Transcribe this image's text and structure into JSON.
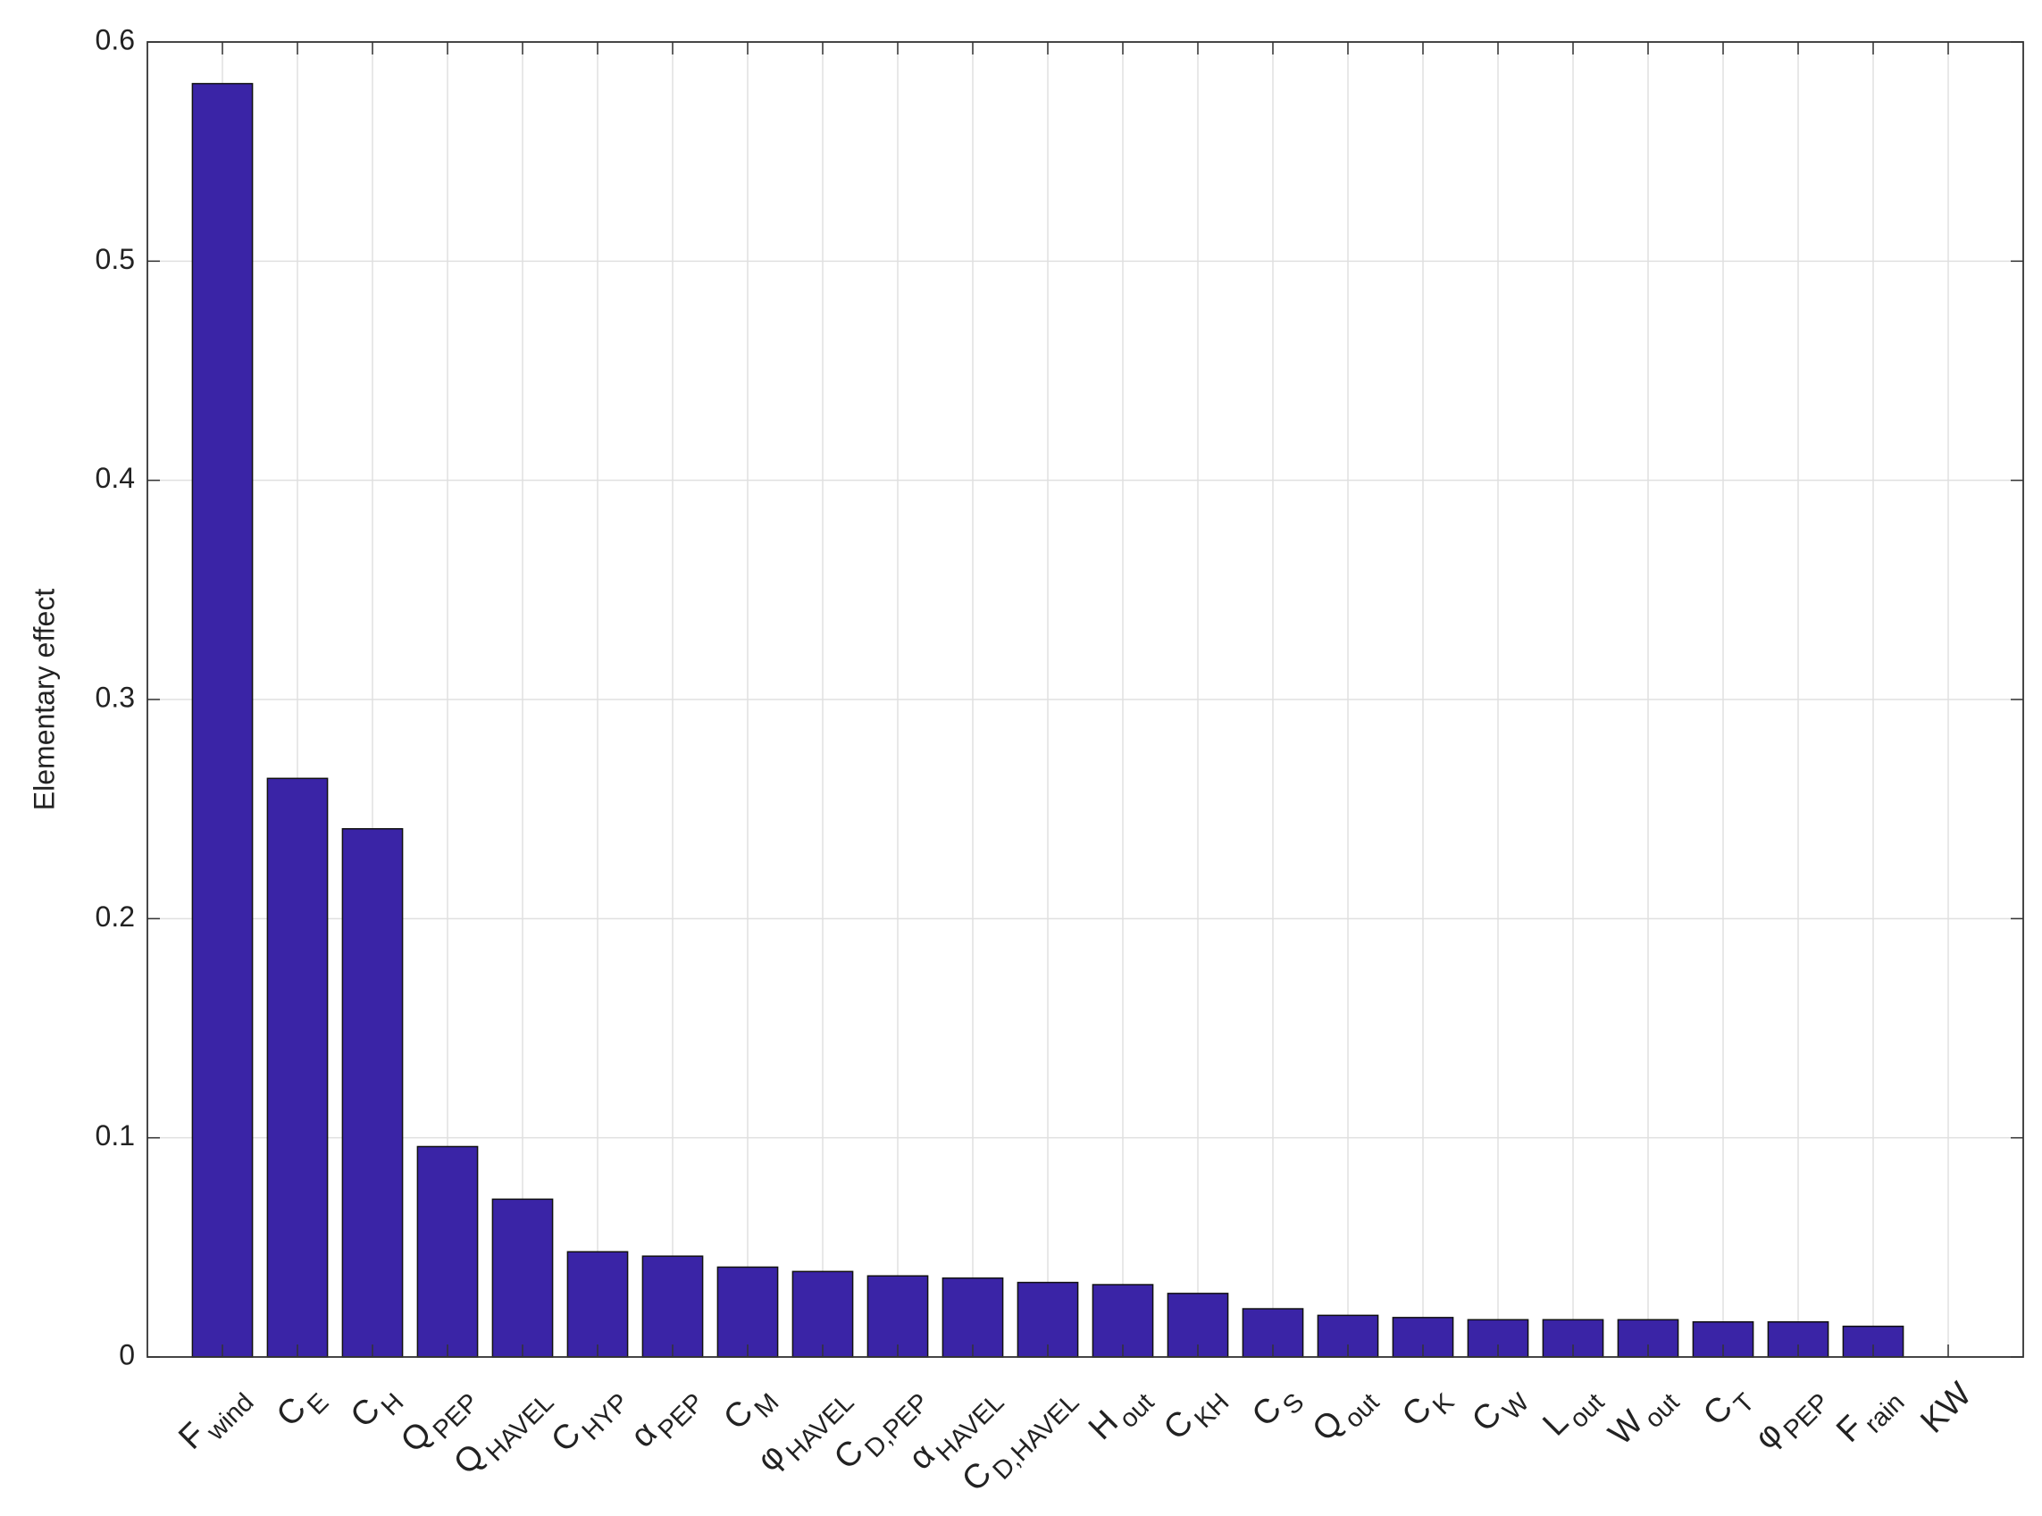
{
  "chart_data": {
    "type": "bar",
    "y_label": "Elementary effect",
    "categories": [
      "F",
      "C",
      "C",
      "Q",
      "Q",
      "C",
      "α",
      "C",
      "φ",
      "C",
      "α",
      "C",
      "H",
      "C",
      "C",
      "Q",
      "C",
      "C",
      "L",
      "W",
      "C",
      "φ",
      "F",
      "KW"
    ],
    "category_subscripts": [
      "wind",
      "E",
      "H",
      "PEP",
      "HAVEL",
      "HYP",
      "PEP",
      "M",
      "HAVEL",
      "D,PEP",
      "HAVEL",
      "D,HAVEL",
      "out",
      "KH",
      "S",
      "out",
      "K",
      "W",
      "out",
      "out",
      "T",
      "PEP",
      "rain",
      null
    ],
    "values": [
      0.581,
      0.264,
      0.241,
      0.096,
      0.072,
      0.048,
      0.046,
      0.041,
      0.039,
      0.037,
      0.036,
      0.034,
      0.033,
      0.029,
      0.022,
      0.019,
      0.018,
      0.017,
      0.017,
      0.017,
      0.016,
      0.016,
      0.014,
      0
    ],
    "color": "#3a24a6",
    "ylim": [
      0,
      0.6
    ],
    "yticks": [
      0,
      0.1,
      0.2,
      0.3,
      0.4,
      0.5,
      0.6
    ],
    "grid": true
  }
}
